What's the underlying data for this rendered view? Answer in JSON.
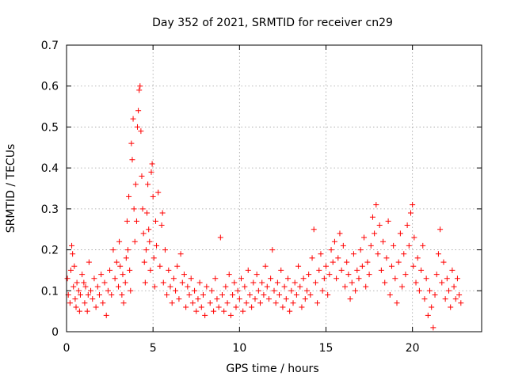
{
  "chart_data": {
    "type": "scatter",
    "title": "Day 352 of 2021, SRMTID for receiver cn29",
    "xlabel": "GPS time / hours",
    "ylabel": "SRMTID / TECUs",
    "xlim": [
      0,
      24
    ],
    "ylim": [
      0,
      0.7
    ],
    "x_ticks": [
      0,
      5,
      10,
      15,
      20
    ],
    "x_tick_labels": [
      "0",
      "5",
      "10",
      "15",
      "20"
    ],
    "y_ticks": [
      0,
      0.1,
      0.2,
      0.3,
      0.4,
      0.5,
      0.6,
      0.7
    ],
    "y_tick_labels": [
      "0",
      "0.1",
      "0.2",
      "0.3",
      "0.4",
      "0.5",
      "0.6",
      "0.7"
    ],
    "grid": true,
    "marker": "+",
    "series_color": "#ff0000",
    "series": [
      {
        "name": "SRMTID",
        "points": [
          [
            0.05,
            0.13
          ],
          [
            0.1,
            0.09
          ],
          [
            0.2,
            0.07
          ],
          [
            0.25,
            0.15
          ],
          [
            0.3,
            0.21
          ],
          [
            0.35,
            0.19
          ],
          [
            0.4,
            0.11
          ],
          [
            0.45,
            0.16
          ],
          [
            0.5,
            0.08
          ],
          [
            0.55,
            0.06
          ],
          [
            0.6,
            0.12
          ],
          [
            0.7,
            0.1
          ],
          [
            0.75,
            0.05
          ],
          [
            0.8,
            0.09
          ],
          [
            0.9,
            0.14
          ],
          [
            1.0,
            0.12
          ],
          [
            1.05,
            0.07
          ],
          [
            1.1,
            0.11
          ],
          [
            1.2,
            0.05
          ],
          [
            1.25,
            0.09
          ],
          [
            1.3,
            0.17
          ],
          [
            1.4,
            0.1
          ],
          [
            1.5,
            0.08
          ],
          [
            1.6,
            0.13
          ],
          [
            1.7,
            0.06
          ],
          [
            1.8,
            0.11
          ],
          [
            1.9,
            0.09
          ],
          [
            2.0,
            0.14
          ],
          [
            2.1,
            0.07
          ],
          [
            2.2,
            0.12
          ],
          [
            2.3,
            0.04
          ],
          [
            2.4,
            0.1
          ],
          [
            2.5,
            0.15
          ],
          [
            2.6,
            0.09
          ],
          [
            2.7,
            0.2
          ],
          [
            2.8,
            0.13
          ],
          [
            2.9,
            0.17
          ],
          [
            3.0,
            0.11
          ],
          [
            3.05,
            0.22
          ],
          [
            3.1,
            0.16
          ],
          [
            3.2,
            0.09
          ],
          [
            3.25,
            0.14
          ],
          [
            3.3,
            0.07
          ],
          [
            3.4,
            0.12
          ],
          [
            3.45,
            0.18
          ],
          [
            3.5,
            0.27
          ],
          [
            3.55,
            0.2
          ],
          [
            3.6,
            0.33
          ],
          [
            3.65,
            0.15
          ],
          [
            3.7,
            0.1
          ],
          [
            3.75,
            0.46
          ],
          [
            3.8,
            0.42
          ],
          [
            3.85,
            0.52
          ],
          [
            3.9,
            0.3
          ],
          [
            3.95,
            0.22
          ],
          [
            4.0,
            0.36
          ],
          [
            4.05,
            0.27
          ],
          [
            4.1,
            0.5
          ],
          [
            4.15,
            0.54
          ],
          [
            4.2,
            0.59
          ],
          [
            4.25,
            0.6
          ],
          [
            4.3,
            0.49
          ],
          [
            4.35,
            0.38
          ],
          [
            4.4,
            0.3
          ],
          [
            4.45,
            0.24
          ],
          [
            4.5,
            0.17
          ],
          [
            4.55,
            0.12
          ],
          [
            4.6,
            0.2
          ],
          [
            4.65,
            0.29
          ],
          [
            4.7,
            0.36
          ],
          [
            4.75,
            0.25
          ],
          [
            4.8,
            0.22
          ],
          [
            4.85,
            0.15
          ],
          [
            4.9,
            0.39
          ],
          [
            4.95,
            0.41
          ],
          [
            5.0,
            0.33
          ],
          [
            5.05,
            0.18
          ],
          [
            5.1,
            0.11
          ],
          [
            5.15,
            0.27
          ],
          [
            5.2,
            0.21
          ],
          [
            5.3,
            0.34
          ],
          [
            5.4,
            0.16
          ],
          [
            5.5,
            0.26
          ],
          [
            5.55,
            0.29
          ],
          [
            5.6,
            0.12
          ],
          [
            5.7,
            0.2
          ],
          [
            5.8,
            0.09
          ],
          [
            5.9,
            0.15
          ],
          [
            6.0,
            0.11
          ],
          [
            6.1,
            0.07
          ],
          [
            6.2,
            0.13
          ],
          [
            6.3,
            0.1
          ],
          [
            6.4,
            0.16
          ],
          [
            6.5,
            0.08
          ],
          [
            6.6,
            0.19
          ],
          [
            6.7,
            0.12
          ],
          [
            6.8,
            0.14
          ],
          [
            6.9,
            0.06
          ],
          [
            7.0,
            0.11
          ],
          [
            7.1,
            0.09
          ],
          [
            7.2,
            0.13
          ],
          [
            7.3,
            0.07
          ],
          [
            7.4,
            0.1
          ],
          [
            7.5,
            0.05
          ],
          [
            7.6,
            0.08
          ],
          [
            7.7,
            0.12
          ],
          [
            7.8,
            0.06
          ],
          [
            7.9,
            0.09
          ],
          [
            8.0,
            0.04
          ],
          [
            8.1,
            0.11
          ],
          [
            8.3,
            0.07
          ],
          [
            8.4,
            0.1
          ],
          [
            8.5,
            0.05
          ],
          [
            8.6,
            0.13
          ],
          [
            8.7,
            0.08
          ],
          [
            8.8,
            0.06
          ],
          [
            8.9,
            0.23
          ],
          [
            9.0,
            0.09
          ],
          [
            9.1,
            0.05
          ],
          [
            9.2,
            0.11
          ],
          [
            9.3,
            0.07
          ],
          [
            9.4,
            0.14
          ],
          [
            9.5,
            0.04
          ],
          [
            9.6,
            0.09
          ],
          [
            9.7,
            0.12
          ],
          [
            9.8,
            0.06
          ],
          [
            9.9,
            0.1
          ],
          [
            10.0,
            0.08
          ],
          [
            10.1,
            0.13
          ],
          [
            10.2,
            0.05
          ],
          [
            10.3,
            0.11
          ],
          [
            10.4,
            0.07
          ],
          [
            10.5,
            0.15
          ],
          [
            10.6,
            0.09
          ],
          [
            10.7,
            0.06
          ],
          [
            10.8,
            0.12
          ],
          [
            10.9,
            0.08
          ],
          [
            11.0,
            0.14
          ],
          [
            11.1,
            0.1
          ],
          [
            11.2,
            0.07
          ],
          [
            11.3,
            0.12
          ],
          [
            11.4,
            0.09
          ],
          [
            11.5,
            0.16
          ],
          [
            11.6,
            0.11
          ],
          [
            11.7,
            0.08
          ],
          [
            11.8,
            0.13
          ],
          [
            11.9,
            0.2
          ],
          [
            12.0,
            0.1
          ],
          [
            12.1,
            0.07
          ],
          [
            12.2,
            0.12
          ],
          [
            12.3,
            0.09
          ],
          [
            12.4,
            0.15
          ],
          [
            12.5,
            0.06
          ],
          [
            12.6,
            0.11
          ],
          [
            12.7,
            0.08
          ],
          [
            12.8,
            0.13
          ],
          [
            12.9,
            0.05
          ],
          [
            13.0,
            0.1
          ],
          [
            13.1,
            0.07
          ],
          [
            13.2,
            0.12
          ],
          [
            13.3,
            0.09
          ],
          [
            13.4,
            0.16
          ],
          [
            13.5,
            0.11
          ],
          [
            13.6,
            0.06
          ],
          [
            13.7,
            0.13
          ],
          [
            13.8,
            0.08
          ],
          [
            13.9,
            0.1
          ],
          [
            14.0,
            0.14
          ],
          [
            14.1,
            0.09
          ],
          [
            14.2,
            0.18
          ],
          [
            14.3,
            0.25
          ],
          [
            14.4,
            0.12
          ],
          [
            14.5,
            0.07
          ],
          [
            14.6,
            0.15
          ],
          [
            14.7,
            0.19
          ],
          [
            14.8,
            0.1
          ],
          [
            14.9,
            0.13
          ],
          [
            15.0,
            0.16
          ],
          [
            15.1,
            0.09
          ],
          [
            15.2,
            0.14
          ],
          [
            15.3,
            0.2
          ],
          [
            15.4,
            0.17
          ],
          [
            15.5,
            0.22
          ],
          [
            15.6,
            0.13
          ],
          [
            15.7,
            0.18
          ],
          [
            15.8,
            0.24
          ],
          [
            15.9,
            0.15
          ],
          [
            16.0,
            0.21
          ],
          [
            16.1,
            0.11
          ],
          [
            16.2,
            0.17
          ],
          [
            16.3,
            0.14
          ],
          [
            16.4,
            0.08
          ],
          [
            16.5,
            0.12
          ],
          [
            16.6,
            0.19
          ],
          [
            16.7,
            0.1
          ],
          [
            16.8,
            0.15
          ],
          [
            16.9,
            0.13
          ],
          [
            17.0,
            0.2
          ],
          [
            17.1,
            0.16
          ],
          [
            17.2,
            0.23
          ],
          [
            17.3,
            0.11
          ],
          [
            17.4,
            0.17
          ],
          [
            17.5,
            0.14
          ],
          [
            17.6,
            0.21
          ],
          [
            17.7,
            0.28
          ],
          [
            17.8,
            0.24
          ],
          [
            17.9,
            0.31
          ],
          [
            18.0,
            0.19
          ],
          [
            18.1,
            0.26
          ],
          [
            18.2,
            0.15
          ],
          [
            18.3,
            0.22
          ],
          [
            18.4,
            0.12
          ],
          [
            18.5,
            0.18
          ],
          [
            18.6,
            0.27
          ],
          [
            18.7,
            0.09
          ],
          [
            18.8,
            0.16
          ],
          [
            18.9,
            0.21
          ],
          [
            19.0,
            0.13
          ],
          [
            19.1,
            0.07
          ],
          [
            19.2,
            0.17
          ],
          [
            19.3,
            0.24
          ],
          [
            19.4,
            0.11
          ],
          [
            19.5,
            0.19
          ],
          [
            19.6,
            0.14
          ],
          [
            19.7,
            0.26
          ],
          [
            19.8,
            0.21
          ],
          [
            19.9,
            0.29
          ],
          [
            20.0,
            0.31
          ],
          [
            20.05,
            0.16
          ],
          [
            20.1,
            0.23
          ],
          [
            20.2,
            0.12
          ],
          [
            20.3,
            0.18
          ],
          [
            20.4,
            0.1
          ],
          [
            20.5,
            0.15
          ],
          [
            20.6,
            0.21
          ],
          [
            20.7,
            0.08
          ],
          [
            20.8,
            0.13
          ],
          [
            20.9,
            0.04
          ],
          [
            21.0,
            0.1
          ],
          [
            21.1,
            0.06
          ],
          [
            21.2,
            0.01
          ],
          [
            21.3,
            0.09
          ],
          [
            21.4,
            0.14
          ],
          [
            21.5,
            0.19
          ],
          [
            21.6,
            0.25
          ],
          [
            21.7,
            0.12
          ],
          [
            21.8,
            0.17
          ],
          [
            21.9,
            0.08
          ],
          [
            22.0,
            0.13
          ],
          [
            22.1,
            0.1
          ],
          [
            22.2,
            0.06
          ],
          [
            22.3,
            0.15
          ],
          [
            22.4,
            0.11
          ],
          [
            22.5,
            0.08
          ],
          [
            22.6,
            0.13
          ],
          [
            22.7,
            0.09
          ],
          [
            22.8,
            0.07
          ]
        ]
      }
    ]
  }
}
